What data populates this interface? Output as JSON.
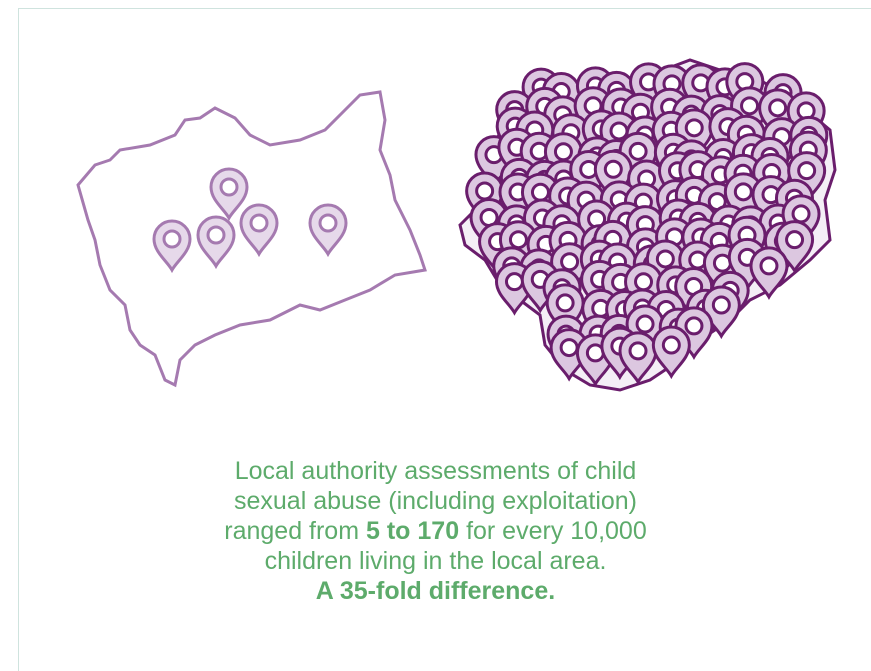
{
  "caption": {
    "lines": [
      "Local authority assessments of child",
      "sexual abuse (including exploitation)"
    ],
    "line3": {
      "before": "ranged from",
      "highlight": "5 to 170",
      "after": "for every 10,000"
    },
    "line4": "children living in the local area.",
    "conclusion": "A 35-fold difference."
  }
}
